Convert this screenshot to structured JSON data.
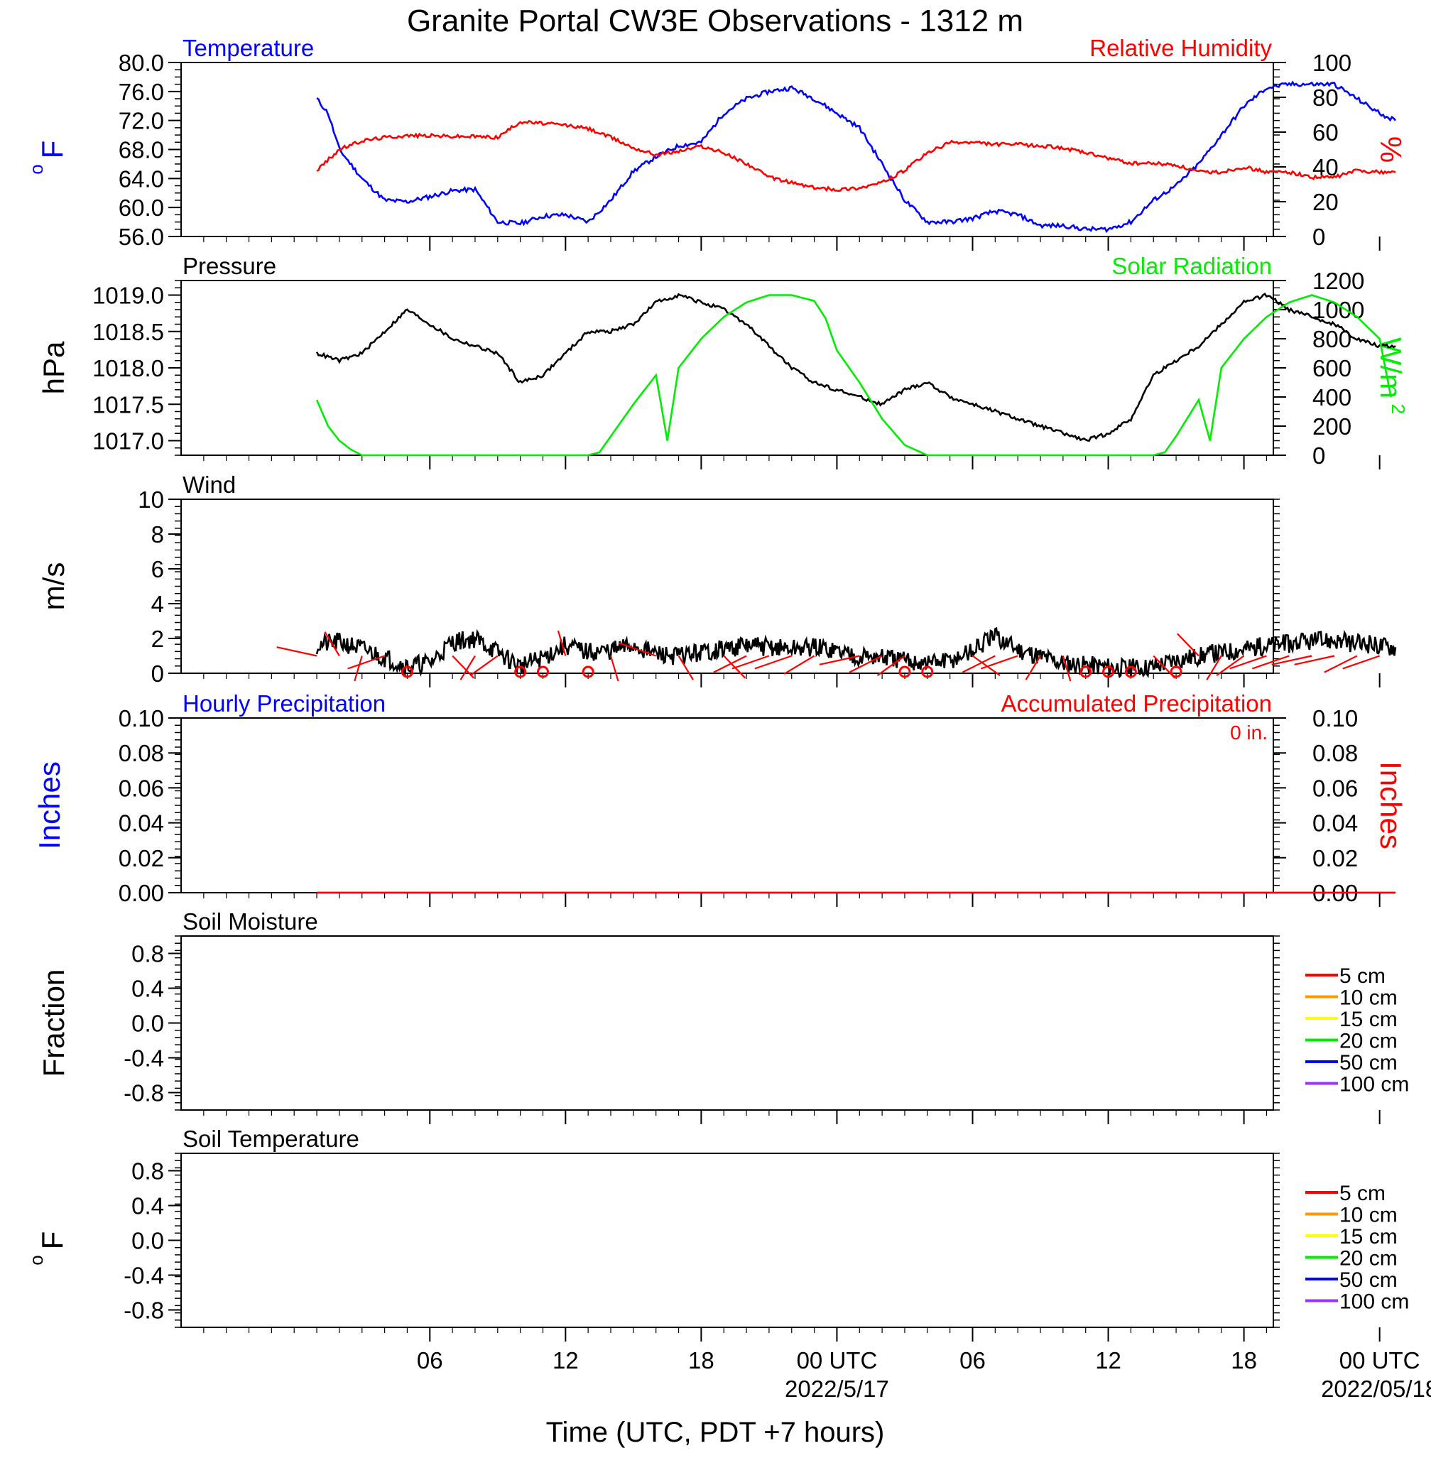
{
  "page": {
    "title": "Granite Portal CW3E Observations - 1312 m",
    "x_axis_label": "Time (UTC, PDT +7 hours)"
  },
  "time_axis": {
    "range_hours": [
      -5,
      43.3
    ],
    "ticks": [
      {
        "hour": 6,
        "label": "06",
        "sublabel": ""
      },
      {
        "hour": 12,
        "label": "12",
        "sublabel": ""
      },
      {
        "hour": 18,
        "label": "18",
        "sublabel": ""
      },
      {
        "hour": 24,
        "label": "00 UTC",
        "sublabel": "2022/5/17"
      },
      {
        "hour": 30,
        "label": "06",
        "sublabel": ""
      },
      {
        "hour": 36,
        "label": "12",
        "sublabel": ""
      },
      {
        "hour": 42,
        "label": "18",
        "sublabel": ""
      },
      {
        "hour": 48,
        "label": "00 UTC",
        "sublabel": "2022/05/18"
      }
    ]
  },
  "colors": {
    "temperature": "#0000ff",
    "humidity": "#ff0000",
    "pressure": "#000000",
    "solar": "#00ee00",
    "wind": "#000000",
    "wind_barb": "#ff0000",
    "precip_hourly": "#0000ff",
    "precip_accum": "#ff0000",
    "soil_5cm": "#ff0000",
    "soil_10cm": "#ff9900",
    "soil_15cm": "#ffff00",
    "soil_20cm": "#00ee00",
    "soil_50cm": "#0000ff",
    "soil_100cm": "#9933ff"
  },
  "chart_data": [
    {
      "id": "temp_rh",
      "type": "line",
      "x_unit": "hours",
      "left_title": "Temperature",
      "right_title": "Relative Humidity",
      "left_ylabel": "oF",
      "right_ylabel": "%",
      "ylim_left": [
        56,
        80
      ],
      "ylim_right": [
        0,
        100
      ],
      "left_ticks": [
        "56.0",
        "60.0",
        "64.0",
        "68.0",
        "72.0",
        "76.0",
        "80.0"
      ],
      "right_ticks": [
        "0",
        "20",
        "40",
        "60",
        "80",
        "100"
      ],
      "series": [
        {
          "name": "Temperature",
          "axis": "left",
          "color_key": "temperature",
          "x": [
            1,
            1.5,
            2,
            3,
            4,
            5,
            6,
            7,
            8,
            9,
            10,
            11,
            12,
            13,
            14,
            15,
            16,
            17,
            18,
            19,
            20,
            21,
            22,
            23,
            24,
            25,
            26,
            27,
            28,
            29,
            30,
            31,
            32,
            33,
            34,
            35,
            36,
            37,
            38,
            39,
            40,
            41,
            42,
            43,
            44,
            45,
            46,
            47,
            48,
            48.7
          ],
          "y": [
            75,
            73,
            68,
            64,
            61,
            60.8,
            61.5,
            62.3,
            62.5,
            58,
            57.8,
            58.8,
            59,
            58,
            61,
            65,
            67,
            68.5,
            69,
            73,
            75,
            76,
            76.5,
            75,
            73,
            71,
            66,
            61,
            58,
            58,
            58.5,
            59.5,
            59,
            57.5,
            57.5,
            57,
            57,
            58,
            61,
            63,
            66,
            70,
            74,
            76.5,
            77,
            77,
            77,
            75,
            73,
            72
          ]
        },
        {
          "name": "Relative Humidity",
          "axis": "right",
          "color_key": "humidity",
          "x": [
            1,
            2,
            3,
            4,
            5,
            6,
            7,
            8,
            9,
            10,
            11,
            12,
            13,
            14,
            15,
            16,
            17,
            18,
            19,
            20,
            21,
            22,
            23,
            24,
            25,
            26,
            27,
            28,
            29,
            30,
            31,
            32,
            33,
            34,
            35,
            36,
            37,
            38,
            39,
            40,
            41,
            42,
            43,
            44,
            45,
            46,
            47,
            48,
            48.7
          ],
          "y": [
            38,
            50,
            55,
            57,
            58,
            58,
            57.5,
            57.5,
            57,
            66,
            65,
            64,
            62,
            57,
            51,
            47,
            49,
            52,
            48,
            42,
            34,
            31,
            28,
            27,
            28,
            31,
            38,
            48,
            54,
            54,
            53,
            53,
            52,
            51,
            48,
            45,
            42,
            42,
            41,
            37,
            37,
            40,
            37,
            37,
            34,
            34,
            38,
            37,
            37
          ]
        }
      ]
    },
    {
      "id": "pressure_solar",
      "type": "line",
      "x_unit": "hours",
      "left_title": "Pressure",
      "right_title": "Solar Radiation",
      "left_ylabel": "hPa",
      "right_ylabel": "W/m2",
      "ylim_left": [
        1016.8,
        1019.2
      ],
      "ylim_right": [
        0,
        1200
      ],
      "left_ticks": [
        "1017.0",
        "1017.5",
        "1018.0",
        "1018.5",
        "1019.0"
      ],
      "right_ticks": [
        "0",
        "200",
        "400",
        "600",
        "800",
        "1000",
        "1200"
      ],
      "series": [
        {
          "name": "Pressure",
          "axis": "left",
          "color_key": "pressure",
          "x": [
            1,
            2,
            3,
            4,
            5,
            6,
            7,
            8,
            9,
            10,
            11,
            12,
            13,
            14,
            15,
            16,
            17,
            18,
            19,
            20,
            21,
            22,
            23,
            24,
            25,
            26,
            27,
            28,
            29,
            30,
            31,
            32,
            33,
            34,
            35,
            36,
            37,
            38,
            39,
            40,
            41,
            42,
            43,
            44,
            45,
            46,
            47,
            48,
            48.7
          ],
          "y": [
            1018.2,
            1018.1,
            1018.2,
            1018.5,
            1018.8,
            1018.6,
            1018.4,
            1018.3,
            1018.2,
            1017.8,
            1017.9,
            1018.2,
            1018.5,
            1018.5,
            1018.6,
            1018.9,
            1019.0,
            1018.9,
            1018.8,
            1018.6,
            1018.3,
            1018.0,
            1017.8,
            1017.7,
            1017.6,
            1017.5,
            1017.7,
            1017.8,
            1017.6,
            1017.5,
            1017.4,
            1017.3,
            1017.2,
            1017.1,
            1017.0,
            1017.1,
            1017.3,
            1017.9,
            1018.1,
            1018.3,
            1018.6,
            1018.9,
            1019.0,
            1018.8,
            1018.7,
            1018.6,
            1018.4,
            1018.3,
            1018.3
          ]
        },
        {
          "name": "Solar Radiation",
          "axis": "right",
          "color_key": "solar",
          "x": [
            1,
            1.5,
            2,
            2.5,
            3,
            3.5,
            4,
            13,
            13.5,
            14,
            15,
            16,
            16.5,
            17,
            18,
            19,
            20,
            21,
            22,
            23,
            23.5,
            24,
            25,
            26,
            27,
            28,
            29,
            38,
            38.5,
            39,
            40,
            40.5,
            41,
            42,
            43,
            44,
            45,
            46,
            47,
            48,
            48.5
          ],
          "y": [
            380,
            200,
            100,
            40,
            0,
            0,
            0,
            0,
            20,
            130,
            350,
            550,
            100,
            600,
            800,
            950,
            1050,
            1100,
            1100,
            1060,
            940,
            720,
            500,
            250,
            70,
            0,
            0,
            0,
            20,
            130,
            380,
            100,
            600,
            800,
            950,
            1050,
            1100,
            1050,
            950,
            800,
            400
          ]
        }
      ]
    },
    {
      "id": "wind",
      "type": "line",
      "x_unit": "hours",
      "left_title": "Wind",
      "left_ylabel": "m/s",
      "ylim_left": [
        0,
        10
      ],
      "left_ticks": [
        "0",
        "2",
        "4",
        "6",
        "8",
        "10"
      ],
      "series": [
        {
          "name": "Wind",
          "axis": "left",
          "color_key": "wind",
          "x": [
            1,
            2,
            3,
            4,
            5,
            6,
            7,
            8,
            9,
            10,
            11,
            12,
            13,
            14,
            15,
            16,
            17,
            18,
            19,
            20,
            21,
            22,
            23,
            24,
            25,
            26,
            27,
            28,
            29,
            30,
            31,
            32,
            33,
            34,
            35,
            36,
            37,
            38,
            39,
            40,
            41,
            42,
            43,
            44,
            45,
            46,
            47,
            48,
            48.7
          ],
          "y": [
            1.6,
            1.8,
            1.4,
            0.9,
            0.4,
            0.6,
            1.8,
            2.0,
            1.2,
            0.4,
            0.9,
            1.6,
            1.2,
            1.3,
            1.6,
            1.1,
            1.0,
            1.2,
            1.4,
            1.6,
            1.5,
            1.4,
            1.5,
            1.3,
            1.0,
            0.9,
            0.7,
            0.6,
            0.7,
            1.3,
            2.1,
            1.4,
            1.0,
            0.6,
            0.5,
            0.4,
            0.3,
            0.4,
            0.8,
            1.0,
            1.2,
            1.4,
            1.6,
            1.7,
            1.8,
            1.9,
            1.7,
            1.6,
            1.5
          ]
        }
      ],
      "calm_hours": [
        5,
        10,
        11,
        13,
        27,
        28,
        35,
        36,
        37,
        39
      ]
    },
    {
      "id": "precip",
      "type": "line",
      "x_unit": "hours",
      "left_title": "Hourly Precipitation",
      "right_title": "Accumulated Precipitation",
      "accum_text": "0 in.",
      "left_ylabel": "Inches",
      "right_ylabel": "Inches",
      "ylim_left": [
        0,
        0.1
      ],
      "ylim_right": [
        0,
        0.1
      ],
      "left_ticks": [
        "0.00",
        "0.02",
        "0.04",
        "0.06",
        "0.08",
        "0.10"
      ],
      "right_ticks": [
        "0.00",
        "0.02",
        "0.04",
        "0.06",
        "0.08",
        "0.10"
      ],
      "series": [
        {
          "name": "Hourly Precipitation",
          "axis": "left",
          "color_key": "precip_hourly",
          "x": [
            1,
            48.7
          ],
          "y": [
            0,
            0
          ]
        },
        {
          "name": "Accumulated Precipitation",
          "axis": "right",
          "color_key": "precip_accum",
          "x": [
            1,
            48.7
          ],
          "y": [
            0,
            0
          ]
        }
      ]
    },
    {
      "id": "soil_moisture",
      "type": "line",
      "x_unit": "hours",
      "left_title": "Soil Moisture",
      "left_ylabel": "Fraction",
      "ylim_left": [
        -1,
        1
      ],
      "left_ticks": [
        "-0.8",
        "-0.4",
        "0.0",
        "0.4",
        "0.8"
      ],
      "legend": [
        "5 cm",
        "10 cm",
        "15 cm",
        "20 cm",
        "50 cm",
        "100 cm"
      ],
      "series": []
    },
    {
      "id": "soil_temp",
      "type": "line",
      "x_unit": "hours",
      "left_title": "Soil Temperature",
      "left_ylabel": "oF",
      "ylim_left": [
        -1,
        1
      ],
      "left_ticks": [
        "-0.8",
        "-0.4",
        "0.0",
        "0.4",
        "0.8"
      ],
      "legend": [
        "5 cm",
        "10 cm",
        "15 cm",
        "20 cm",
        "50 cm",
        "100 cm"
      ],
      "series": []
    }
  ]
}
